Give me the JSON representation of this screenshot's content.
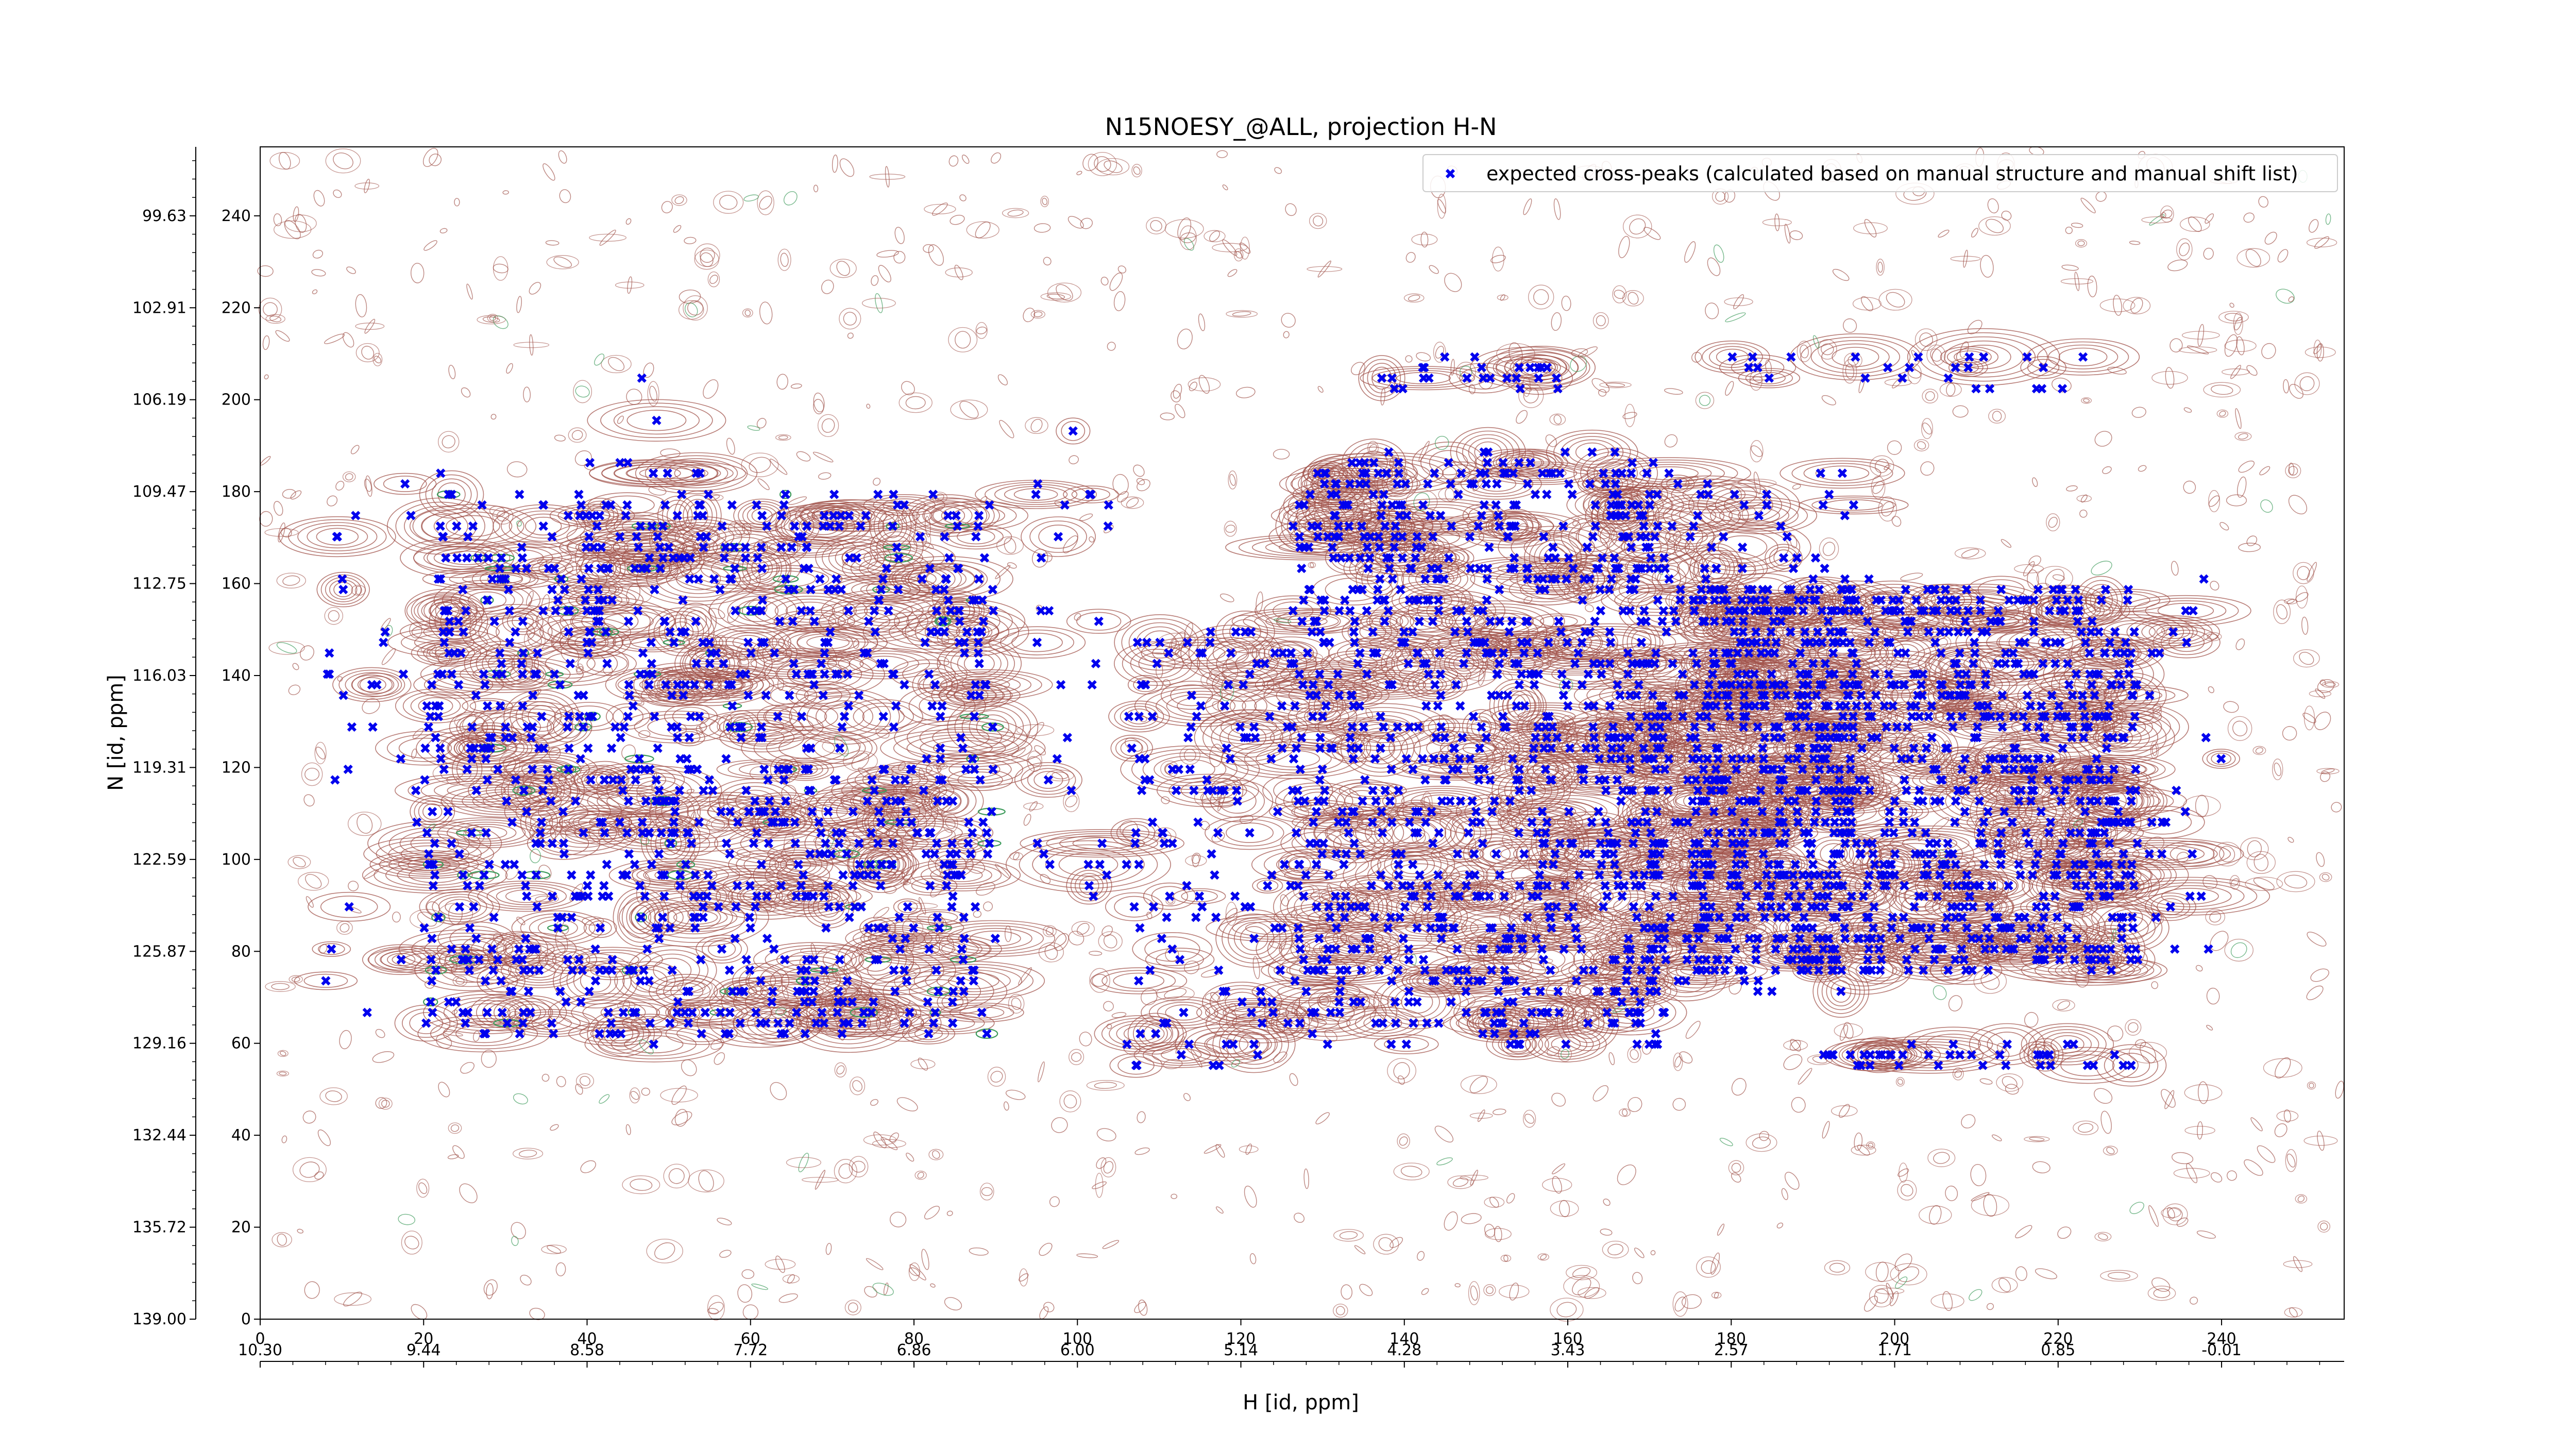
{
  "chart_data": {
    "type": "scatter",
    "title": "N15NOESY_@ALL, projection H-N",
    "xlabel": "H [id, ppm]",
    "ylabel": "N [id, ppm]",
    "xlim": [
      0,
      255
    ],
    "ylim": [
      0,
      255
    ],
    "x_ticks": [
      0,
      20,
      40,
      60,
      80,
      100,
      120,
      140,
      160,
      180,
      200,
      220,
      240
    ],
    "y_ticks": [
      0,
      20,
      40,
      60,
      80,
      100,
      120,
      140,
      160,
      180,
      200,
      220,
      240
    ],
    "x_ppm_ticks": [
      "10.30",
      "9.44",
      "8.58",
      "7.72",
      "6.86",
      "6.00",
      "5.14",
      "4.28",
      "3.43",
      "2.57",
      "1.71",
      "0.85",
      "-0.01"
    ],
    "y_ppm_ticks": [
      "139.00",
      "135.72",
      "132.44",
      "129.16",
      "125.87",
      "122.59",
      "119.31",
      "116.03",
      "112.75",
      "109.47",
      "106.19",
      "102.91",
      "99.63"
    ],
    "grid": false,
    "legend_position": "top-right",
    "colors": {
      "contour": "#a0524a",
      "contour_negative": "#3c9a5a",
      "peaks": "#0000ee"
    },
    "series": [
      {
        "name": "expected cross-peaks (calculated based on manual structure and manual shift list)",
        "clusters": [
          {
            "x": [
              20,
              90
            ],
            "y": [
              62,
              180
            ],
            "count": 900
          },
          {
            "x": [
              40,
              55
            ],
            "y": [
              58,
              205
            ],
            "count": 60
          },
          {
            "x": [
              8,
              25
            ],
            "y": [
              55,
              190
            ],
            "count": 40
          },
          {
            "x": [
              94,
              104
            ],
            "y": [
              90,
              195
            ],
            "count": 30
          },
          {
            "x": [
              106,
              126
            ],
            "y": [
              55,
              150
            ],
            "count": 130
          },
          {
            "x": [
              126,
              172
            ],
            "y": [
              60,
              188
            ],
            "count": 900
          },
          {
            "x": [
              137,
              160
            ],
            "y": [
              202,
              210
            ],
            "count": 25
          },
          {
            "x": [
              165,
              195
            ],
            "y": [
              70,
              185
            ],
            "count": 260
          },
          {
            "x": [
              175,
              230
            ],
            "y": [
              75,
              160
            ],
            "count": 1000
          },
          {
            "x": [
              180,
              225
            ],
            "y": [
              202,
              210
            ],
            "count": 25
          },
          {
            "x": [
              190,
              230
            ],
            "y": [
              55,
              60
            ],
            "count": 40
          },
          {
            "x": [
              228,
              240
            ],
            "y": [
              80,
              165
            ],
            "count": 30
          }
        ]
      }
    ]
  }
}
